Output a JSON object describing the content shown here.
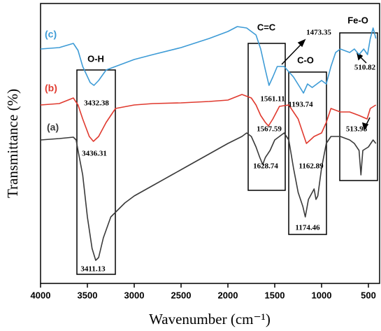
{
  "chart_data": {
    "type": "line",
    "x_label": "Wavenumber (cm⁻¹)",
    "y_label": "Transmittance (%)",
    "xlim": [
      4000,
      400
    ],
    "xticks": [
      4000,
      3500,
      3000,
      2500,
      2000,
      1500,
      1000,
      500
    ],
    "ylim": [
      0,
      100
    ],
    "series": [
      {
        "name": "(c)",
        "color": "#3d9bd6",
        "x": [
          4000,
          3800,
          3650,
          3600,
          3550,
          3470,
          3430,
          3380,
          3300,
          3200,
          3000,
          2800,
          2500,
          2200,
          2000,
          1900,
          1800,
          1700,
          1650,
          1600,
          1561,
          1520,
          1473,
          1400,
          1300,
          1230,
          1193,
          1150,
          1100,
          1050,
          1000,
          950,
          900,
          850,
          800,
          700,
          650,
          600,
          550,
          510,
          480,
          450,
          420
        ],
        "values": [
          83.75,
          84.25,
          85.75,
          83.25,
          77.5,
          71.75,
          70.75,
          72.5,
          76.25,
          77.5,
          80,
          81.75,
          84.25,
          87.5,
          90,
          91.75,
          91.25,
          88.75,
          83.75,
          76.25,
          70.75,
          73.75,
          77.5,
          77.5,
          73.75,
          70,
          68,
          71.25,
          70,
          71.25,
          72.5,
          71.25,
          77.5,
          82.5,
          83.75,
          82.5,
          83.75,
          81.75,
          83.75,
          81.75,
          87.5,
          91.25,
          87.5
        ]
      },
      {
        "name": "(b)",
        "color": "#e03a2f",
        "x": [
          4000,
          3800,
          3650,
          3600,
          3550,
          3480,
          3436,
          3380,
          3300,
          3200,
          3000,
          2800,
          2500,
          2200,
          2000,
          1850,
          1750,
          1700,
          1650,
          1600,
          1567,
          1520,
          1450,
          1350,
          1250,
          1200,
          1162,
          1120,
          1080,
          1000,
          950,
          900,
          800,
          700,
          600,
          514,
          480,
          420
        ],
        "values": [
          63.75,
          64.25,
          66.25,
          63.75,
          58.75,
          52.5,
          50.75,
          52.5,
          57.5,
          62.5,
          63.75,
          64.25,
          64.5,
          65,
          65.5,
          67.5,
          66.25,
          63.75,
          60,
          57.5,
          56.25,
          58.75,
          63.25,
          63.75,
          58.75,
          53.75,
          50,
          51.25,
          52.5,
          53.75,
          57.5,
          62.5,
          61.25,
          61.25,
          60,
          58.75,
          62.5,
          63.75
        ]
      },
      {
        "name": "(a)",
        "color": "#3a3a3a",
        "x": [
          4000,
          3800,
          3650,
          3620,
          3600,
          3550,
          3500,
          3450,
          3411,
          3380,
          3330,
          3250,
          3100,
          3000,
          2800,
          2600,
          2400,
          2200,
          2000,
          1850,
          1800,
          1750,
          1700,
          1660,
          1628,
          1600,
          1550,
          1500,
          1450,
          1400,
          1350,
          1300,
          1250,
          1200,
          1174,
          1140,
          1100,
          1080,
          1060,
          1040,
          1000,
          950,
          900,
          800,
          700,
          650,
          600,
          580,
          560,
          500,
          450,
          420
        ],
        "values": [
          51.25,
          51.75,
          52.25,
          51.25,
          47.5,
          38.75,
          23.75,
          12.5,
          8.25,
          9.25,
          16.25,
          23.75,
          28.75,
          31.25,
          35,
          38.75,
          42.5,
          46.25,
          50,
          52.5,
          53.75,
          52.5,
          48.75,
          45,
          42.5,
          45,
          47.5,
          51.25,
          52.5,
          53.75,
          51.25,
          41.25,
          32.5,
          27.5,
          23.75,
          30,
          32.5,
          33.75,
          30,
          31.25,
          41.25,
          50,
          52.5,
          52.5,
          51.25,
          50,
          47.5,
          38.75,
          47.5,
          48.75,
          51.25,
          50
        ]
      }
    ],
    "annotations": [
      "O-H",
      "C=C",
      "C-O",
      "Fe-O",
      "3432.38",
      "3436.31",
      "3411.13",
      "1561.11",
      "1473.35",
      "1567.59",
      "1628.74",
      "1193.74",
      "1162.89",
      "1174.46",
      "510.82",
      "513.98"
    ]
  }
}
